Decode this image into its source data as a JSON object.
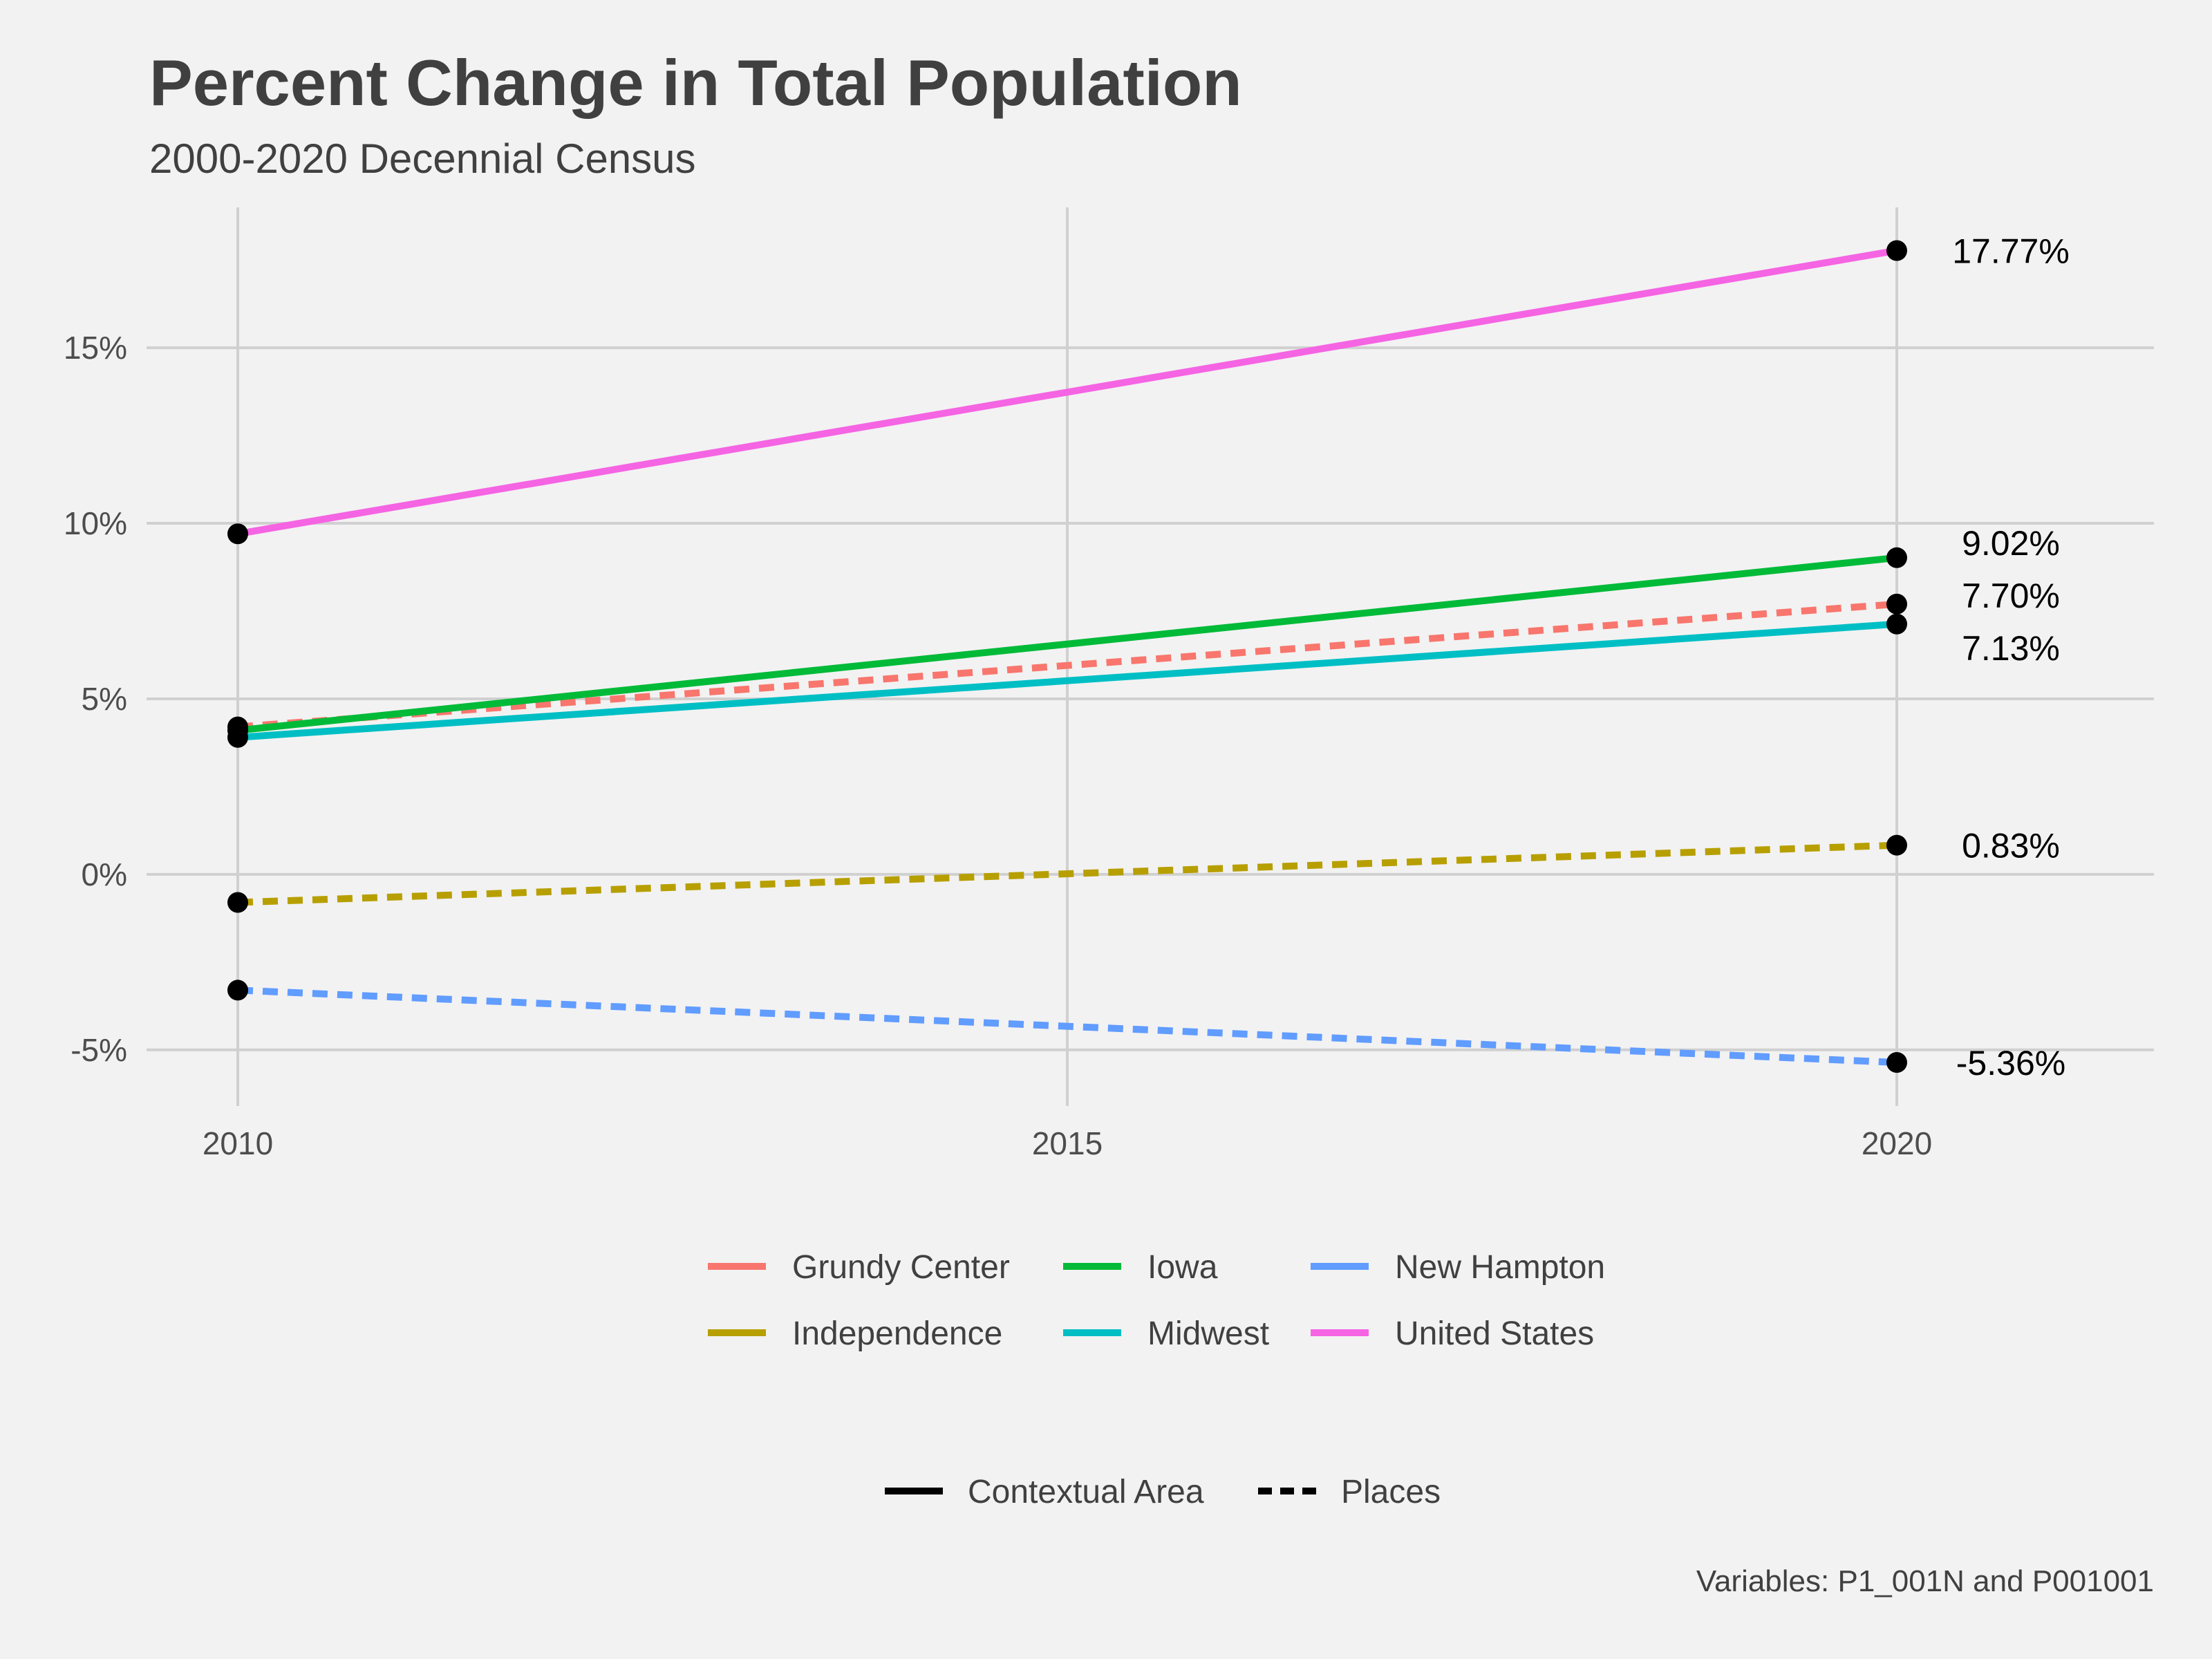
{
  "chart_data": {
    "type": "line",
    "title": "Percent Change in Total Population",
    "subtitle": "2000-2020 Decennial Census",
    "caption": "Variables: P1_001N and P001001",
    "x": [
      2010,
      2020
    ],
    "x_ticks": [
      2010,
      2015,
      2020
    ],
    "x_tick_labels": [
      "2010",
      "2015",
      "2020"
    ],
    "xlim": [
      2009.45,
      2021.55
    ],
    "y_ticks": [
      -5,
      0,
      5,
      10,
      15
    ],
    "y_tick_labels": [
      "-5%",
      "0%",
      "5%",
      "10%",
      "15%"
    ],
    "ylim": [
      -6.6,
      19.0
    ],
    "grid": true,
    "legend_position": "bottom",
    "series": [
      {
        "name": "Grundy Center",
        "values": [
          4.2,
          7.7
        ],
        "color": "#f8766d",
        "linetype": "dashed",
        "end_label": "7.70%"
      },
      {
        "name": "Independence",
        "values": [
          -0.8,
          0.83
        ],
        "color": "#b79f00",
        "linetype": "dashed",
        "end_label": "0.83%"
      },
      {
        "name": "Iowa",
        "values": [
          4.1,
          9.02
        ],
        "color": "#00ba38",
        "linetype": "solid",
        "end_label": "9.02%"
      },
      {
        "name": "Midwest",
        "values": [
          3.9,
          7.13
        ],
        "color": "#00bfc4",
        "linetype": "solid",
        "end_label": "7.13%"
      },
      {
        "name": "New Hampton",
        "values": [
          -3.3,
          -5.36
        ],
        "color": "#619cff",
        "linetype": "dashed",
        "end_label": "-5.36%"
      },
      {
        "name": "United States",
        "values": [
          9.7,
          17.77
        ],
        "color": "#f564e3",
        "linetype": "solid",
        "end_label": "17.77%"
      }
    ],
    "linetype_legend": [
      {
        "name": "Contextual Area",
        "linetype": "solid"
      },
      {
        "name": "Places",
        "linetype": "dashed"
      }
    ]
  }
}
